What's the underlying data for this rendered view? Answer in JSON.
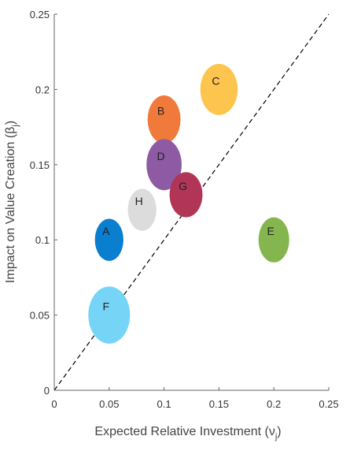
{
  "chart_data": {
    "type": "scatter",
    "xlabel": "Expected Relative Investment (ν",
    "xlabel_sub": "j",
    "xlabel_close": ")",
    "ylabel": "Impact on Value Creation (β",
    "ylabel_sub": "j",
    "ylabel_close": ")",
    "xlim": [
      0,
      0.25
    ],
    "ylim": [
      0,
      0.25
    ],
    "x_ticks": [
      "0",
      "0.05",
      "0.1",
      "0.15",
      "0.2",
      "0.25"
    ],
    "y_ticks": [
      "0",
      "0.05",
      "0.1",
      "0.15",
      "0.2",
      "0.25"
    ],
    "grid": false,
    "reference_line": {
      "style": "dashed",
      "from": [
        0,
        0
      ],
      "to": [
        0.25,
        0.25
      ],
      "color": "#000000"
    },
    "points": [
      {
        "label": "A",
        "x": 0.05,
        "y": 0.1,
        "rx": 0.013,
        "ry": 0.014,
        "color": "#0a7ecf"
      },
      {
        "label": "B",
        "x": 0.1,
        "y": 0.18,
        "rx": 0.015,
        "ry": 0.016,
        "color": "#f07a3c"
      },
      {
        "label": "C",
        "x": 0.15,
        "y": 0.2,
        "rx": 0.017,
        "ry": 0.017,
        "color": "#fdc44e"
      },
      {
        "label": "D",
        "x": 0.1,
        "y": 0.15,
        "rx": 0.016,
        "ry": 0.017,
        "color": "#8d5aa3"
      },
      {
        "label": "E",
        "x": 0.2,
        "y": 0.1,
        "rx": 0.014,
        "ry": 0.015,
        "color": "#85b54f"
      },
      {
        "label": "F",
        "x": 0.05,
        "y": 0.05,
        "rx": 0.019,
        "ry": 0.019,
        "color": "#76d5f7"
      },
      {
        "label": "G",
        "x": 0.12,
        "y": 0.13,
        "rx": 0.015,
        "ry": 0.015,
        "color": "#b03556"
      },
      {
        "label": "H",
        "x": 0.08,
        "y": 0.12,
        "rx": 0.013,
        "ry": 0.014,
        "color": "#dcdcdc"
      }
    ]
  }
}
